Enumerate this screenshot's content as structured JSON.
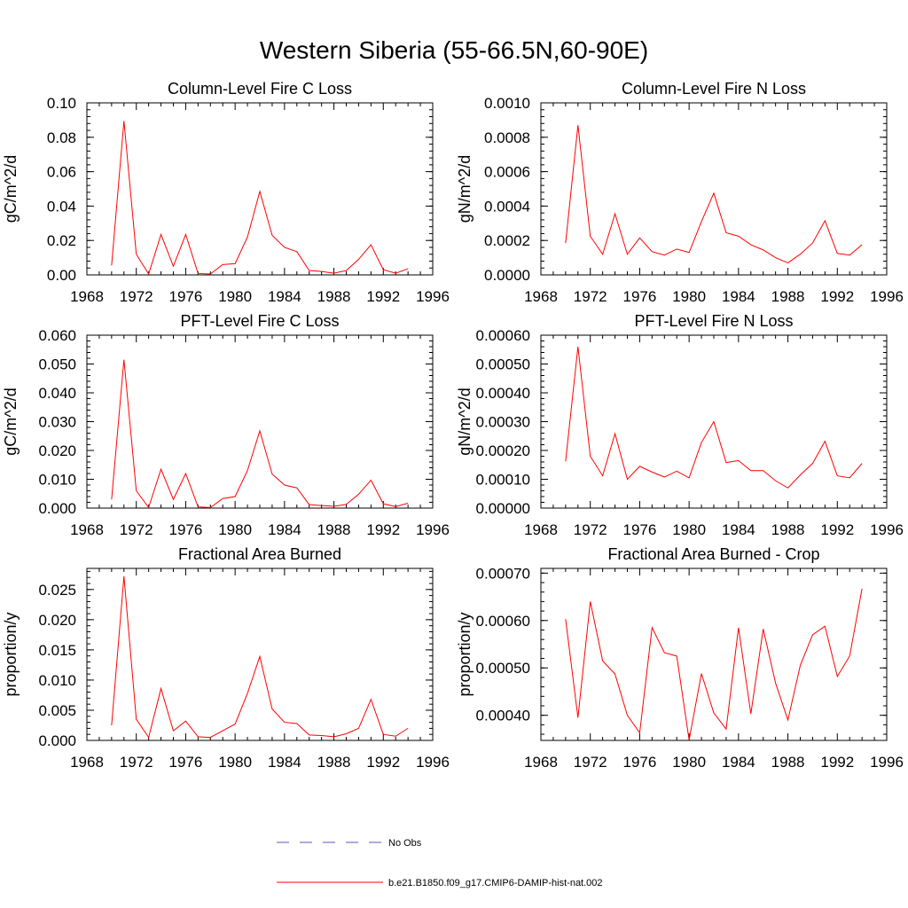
{
  "figure": {
    "title": "Western Siberia (55-66.5N,60-90E)"
  },
  "legend": {
    "entries": [
      {
        "label": "No Obs",
        "color": "#5a5ab4",
        "dash": true
      },
      {
        "label": "b.e21.B1850.f09_g17.CMIP6-DAMIP-hist-nat.002",
        "color": "#ff0000",
        "dash": false
      }
    ]
  },
  "chart_data": [
    {
      "type": "line",
      "title": "Column-Level Fire C Loss",
      "ylabel": "gC/m^2/d",
      "xlim": [
        1968,
        1996
      ],
      "ylim": [
        0,
        0.1
      ],
      "xticks": [
        "1968",
        "1972",
        "1976",
        "1980",
        "1984",
        "1988",
        "1992",
        "1996"
      ],
      "yticks": [
        "0.00",
        "0.02",
        "0.04",
        "0.06",
        "0.08",
        "0.10"
      ],
      "x": [
        1970,
        1971,
        1972,
        1973,
        1974,
        1975,
        1976,
        1977,
        1978,
        1979,
        1980,
        1981,
        1982,
        1983,
        1984,
        1985,
        1986,
        1987,
        1988,
        1989,
        1990,
        1991,
        1992,
        1993,
        1994
      ],
      "series": [
        {
          "color": "#ff0000",
          "values": [
            0.0055,
            0.0895,
            0.012,
            0.0005,
            0.0235,
            0.005,
            0.0235,
            0.0008,
            0.0005,
            0.006,
            0.0065,
            0.022,
            0.0485,
            0.023,
            0.016,
            0.0135,
            0.0025,
            0.002,
            0.001,
            0.0025,
            0.009,
            0.0175,
            0.003,
            0.001,
            0.0035
          ]
        }
      ]
    },
    {
      "type": "line",
      "title": "Column-Level Fire N Loss",
      "ylabel": "gN/m^2/d",
      "xlim": [
        1968,
        1996
      ],
      "ylim": [
        0,
        0.001
      ],
      "xticks": [
        "1968",
        "1972",
        "1976",
        "1980",
        "1984",
        "1988",
        "1992",
        "1996"
      ],
      "yticks": [
        "0.0000",
        "0.0002",
        "0.0004",
        "0.0006",
        "0.0008",
        "0.0010"
      ],
      "x": [
        1970,
        1971,
        1972,
        1973,
        1974,
        1975,
        1976,
        1977,
        1978,
        1979,
        1980,
        1981,
        1982,
        1983,
        1984,
        1985,
        1986,
        1987,
        1988,
        1989,
        1990,
        1991,
        1992,
        1993,
        1994
      ],
      "series": [
        {
          "color": "#ff0000",
          "values": [
            0.000185,
            0.00087,
            0.000225,
            0.00012,
            0.000355,
            0.00012,
            0.000215,
            0.000135,
            0.000115,
            0.00015,
            0.00013,
            0.00031,
            0.000475,
            0.000245,
            0.000225,
            0.000175,
            0.000145,
            0.0001,
            7e-05,
            0.00012,
            0.000185,
            0.000315,
            0.000125,
            0.000115,
            0.000175
          ]
        }
      ]
    },
    {
      "type": "line",
      "title": "PFT-Level Fire C Loss",
      "ylabel": "gC/m^2/d",
      "xlim": [
        1968,
        1996
      ],
      "ylim": [
        0,
        0.06
      ],
      "xticks": [
        "1968",
        "1972",
        "1976",
        "1980",
        "1984",
        "1988",
        "1992",
        "1996"
      ],
      "yticks": [
        "0.000",
        "0.010",
        "0.020",
        "0.030",
        "0.040",
        "0.050",
        "0.060"
      ],
      "x": [
        1970,
        1971,
        1972,
        1973,
        1974,
        1975,
        1976,
        1977,
        1978,
        1979,
        1980,
        1981,
        1982,
        1983,
        1984,
        1985,
        1986,
        1987,
        1988,
        1989,
        1990,
        1991,
        1992,
        1993,
        1994
      ],
      "series": [
        {
          "color": "#ff0000",
          "values": [
            0.003,
            0.0515,
            0.006,
            0.0002,
            0.0135,
            0.003,
            0.012,
            0.0004,
            0.0002,
            0.0033,
            0.004,
            0.013,
            0.0268,
            0.0118,
            0.008,
            0.007,
            0.0012,
            0.0009,
            0.0006,
            0.0013,
            0.0048,
            0.0097,
            0.0015,
            0.0005,
            0.0017
          ]
        }
      ]
    },
    {
      "type": "line",
      "title": "PFT-Level Fire N Loss",
      "ylabel": "gN/m^2/d",
      "xlim": [
        1968,
        1996
      ],
      "ylim": [
        0,
        0.0006
      ],
      "xticks": [
        "1968",
        "1972",
        "1976",
        "1980",
        "1984",
        "1988",
        "1992",
        "1996"
      ],
      "yticks": [
        "0.00000",
        "0.00010",
        "0.00020",
        "0.00030",
        "0.00040",
        "0.00050",
        "0.00060"
      ],
      "x": [
        1970,
        1971,
        1972,
        1973,
        1974,
        1975,
        1976,
        1977,
        1978,
        1979,
        1980,
        1981,
        1982,
        1983,
        1984,
        1985,
        1986,
        1987,
        1988,
        1989,
        1990,
        1991,
        1992,
        1993,
        1994
      ],
      "series": [
        {
          "color": "#ff0000",
          "values": [
            0.000162,
            0.00056,
            0.00018,
            0.000112,
            0.000258,
            0.0001,
            0.000145,
            0.000125,
            0.000108,
            0.000128,
            0.000105,
            0.000228,
            0.0003,
            0.000158,
            0.000165,
            0.00013,
            0.00013,
            9.5e-05,
            7e-05,
            0.000115,
            0.000155,
            0.000232,
            0.000112,
            0.000105,
            0.000155
          ]
        }
      ]
    },
    {
      "type": "line",
      "title": "Fractional Area Burned",
      "ylabel": "proportion/y",
      "xlim": [
        1968,
        1996
      ],
      "ylim": [
        0,
        0.0285
      ],
      "xticks": [
        "1968",
        "1972",
        "1976",
        "1980",
        "1984",
        "1988",
        "1992",
        "1996"
      ],
      "yticks": [
        "0.000",
        "0.005",
        "0.010",
        "0.015",
        "0.020",
        "0.025"
      ],
      "x": [
        1970,
        1971,
        1972,
        1973,
        1974,
        1975,
        1976,
        1977,
        1978,
        1979,
        1980,
        1981,
        1982,
        1983,
        1984,
        1985,
        1986,
        1987,
        1988,
        1989,
        1990,
        1991,
        1992,
        1993,
        1994
      ],
      "series": [
        {
          "color": "#ff0000",
          "values": [
            0.0025,
            0.0272,
            0.0035,
            0.0005,
            0.0086,
            0.0016,
            0.0032,
            0.0006,
            0.0005,
            0.0016,
            0.0027,
            0.0078,
            0.0139,
            0.0052,
            0.003,
            0.0028,
            0.0009,
            0.0008,
            0.0006,
            0.0011,
            0.002,
            0.0068,
            0.001,
            0.0007,
            0.002
          ]
        }
      ]
    },
    {
      "type": "line",
      "title": "Fractional Area Burned - Crop",
      "ylabel": "proportion/y",
      "xlim": [
        1968,
        1996
      ],
      "ylim": [
        0.000347,
        0.00071
      ],
      "xticks": [
        "1968",
        "1972",
        "1976",
        "1980",
        "1984",
        "1988",
        "1992",
        "1996"
      ],
      "yticks": [
        "0.00040",
        "0.00050",
        "0.00060",
        "0.00070"
      ],
      "x": [
        1970,
        1971,
        1972,
        1973,
        1974,
        1975,
        1976,
        1977,
        1978,
        1979,
        1980,
        1981,
        1982,
        1983,
        1984,
        1985,
        1986,
        1987,
        1988,
        1989,
        1990,
        1991,
        1992,
        1993,
        1994
      ],
      "series": [
        {
          "color": "#ff0000",
          "values": [
            0.000603,
            0.000395,
            0.00064,
            0.000515,
            0.000487,
            0.0004,
            0.000363,
            0.000585,
            0.000532,
            0.000525,
            0.000348,
            0.000488,
            0.000405,
            0.000371,
            0.000585,
            0.000403,
            0.000582,
            0.000468,
            0.00039,
            0.000505,
            0.00057,
            0.000588,
            0.000482,
            0.000525,
            0.000667
          ]
        }
      ]
    }
  ]
}
